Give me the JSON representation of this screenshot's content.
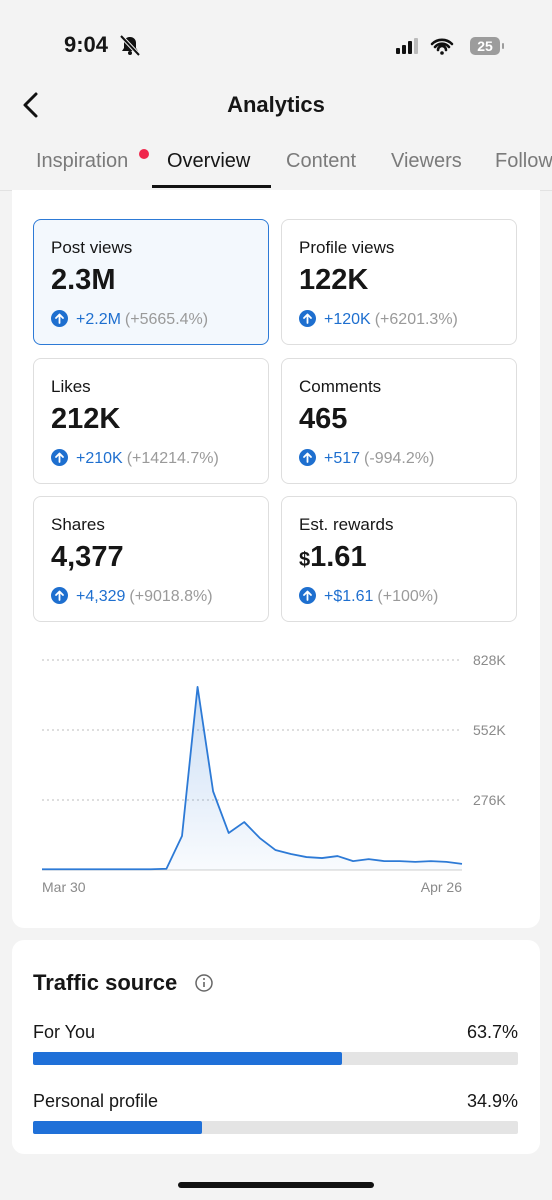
{
  "status_bar": {
    "time": "9:04",
    "battery": "25"
  },
  "header": {
    "title": "Analytics"
  },
  "tabs": [
    "Inspiration",
    "Overview",
    "Content",
    "Viewers",
    "Follow"
  ],
  "active_tab": 1,
  "metrics": [
    {
      "label": "Post views",
      "value": "2.3M",
      "change": "+2.2M",
      "percent": "(+5665.4%)",
      "selected": true
    },
    {
      "label": "Profile views",
      "value": "122K",
      "change": "+120K",
      "percent": "(+6201.3%)"
    },
    {
      "label": "Likes",
      "value": "212K",
      "change": "+210K",
      "percent": "(+14214.7%)"
    },
    {
      "label": "Comments",
      "value": "465",
      "change": "+517",
      "percent": "(-994.2%)"
    },
    {
      "label": "Shares",
      "value": "4,377",
      "change": "+4,329",
      "percent": "(+9018.8%)"
    },
    {
      "label": "Est. rewards",
      "currency": "$",
      "value": "1.61",
      "change": "+$1.61",
      "percent": "(+100%)"
    }
  ],
  "chart_data": {
    "type": "area",
    "categories": [
      "Mar 30",
      null,
      null,
      null,
      null,
      null,
      null,
      null,
      null,
      null,
      null,
      null,
      null,
      null,
      null,
      null,
      null,
      null,
      null,
      null,
      null,
      null,
      null,
      null,
      null,
      null,
      null,
      "Apr 26"
    ],
    "values": [
      3000,
      3000,
      3000,
      3000,
      3000,
      3000,
      3000,
      3000,
      5000,
      134000,
      722000,
      310000,
      146000,
      189000,
      126000,
      79000,
      63000,
      51000,
      47000,
      55000,
      35000,
      43000,
      35000,
      35000,
      32000,
      35000,
      32000,
      24000
    ],
    "color": "#2d7ad6",
    "ylim": [
      0,
      828000
    ],
    "yticks": [
      {
        "value": 276000,
        "label": "276K"
      },
      {
        "value": 552000,
        "label": "552K"
      },
      {
        "value": 828000,
        "label": "828K"
      }
    ],
    "grid": true
  },
  "traffic": {
    "title": "Traffic source",
    "items": [
      {
        "name": "For You",
        "value": 63.7,
        "label": "63.7%"
      },
      {
        "name": "Personal profile",
        "value": 34.9,
        "label": "34.9%"
      }
    ]
  }
}
